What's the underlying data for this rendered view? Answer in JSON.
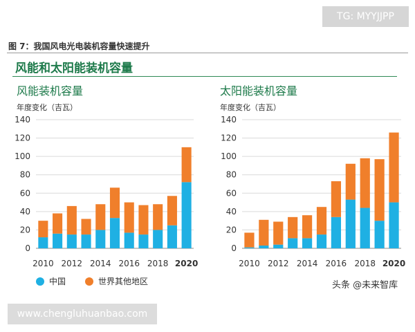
{
  "watermark_top": "TG: MYYJJPP",
  "figure_caption": "图 7：我国风电光电装机容量快速提升",
  "panel_title": "风能和太阳能装机容量",
  "watermark_bottom": "www.chengluhuanbao.com",
  "watermark_toutiao": "头条 @未来智库",
  "colors": {
    "china": "#1fb0e3",
    "other": "#f07f2b",
    "accent": "#1d7a4a"
  },
  "legend": [
    {
      "label": "中国",
      "color": "#1fb0e3"
    },
    {
      "label": "世界其他地区",
      "color": "#f07f2b"
    }
  ],
  "chart_data": [
    {
      "type": "bar",
      "stacked": true,
      "title": "风能装机容量",
      "ylabel": "年度变化（吉瓦）",
      "xlabel": "",
      "ylim": [
        0,
        140
      ],
      "yticks": [
        0,
        20,
        40,
        60,
        80,
        100,
        120,
        140
      ],
      "categories": [
        "2010",
        "2011",
        "2012",
        "2013",
        "2014",
        "2015",
        "2016",
        "2017",
        "2018",
        "2019",
        "2020"
      ],
      "xtick_labels": [
        "2010",
        "",
        "2012",
        "",
        "2014",
        "",
        "2016",
        "",
        "2018",
        "",
        "2020"
      ],
      "series": [
        {
          "name": "中国",
          "values": [
            12,
            16,
            15,
            15,
            20,
            33,
            17,
            15,
            20,
            25,
            72
          ]
        },
        {
          "name": "世界其他地区",
          "values": [
            18,
            22,
            31,
            17,
            28,
            33,
            33,
            32,
            28,
            32,
            38
          ]
        }
      ]
    },
    {
      "type": "bar",
      "stacked": true,
      "title": "太阳能装机容量",
      "ylabel": "年度变化（吉瓦）",
      "xlabel": "",
      "ylim": [
        0,
        140
      ],
      "yticks": [
        0,
        20,
        40,
        60,
        80,
        100,
        120,
        140
      ],
      "categories": [
        "2010",
        "2011",
        "2012",
        "2013",
        "2014",
        "2015",
        "2016",
        "2017",
        "2018",
        "2019",
        "2020"
      ],
      "xtick_labels": [
        "2010",
        "",
        "2012",
        "",
        "2014",
        "",
        "2016",
        "",
        "2018",
        "",
        "2020"
      ],
      "series": [
        {
          "name": "中国",
          "values": [
            1,
            3,
            4,
            11,
            11,
            15,
            34,
            53,
            44,
            30,
            50
          ]
        },
        {
          "name": "世界其他地区",
          "values": [
            16,
            28,
            25,
            23,
            25,
            30,
            39,
            39,
            54,
            67,
            76
          ]
        }
      ]
    }
  ]
}
